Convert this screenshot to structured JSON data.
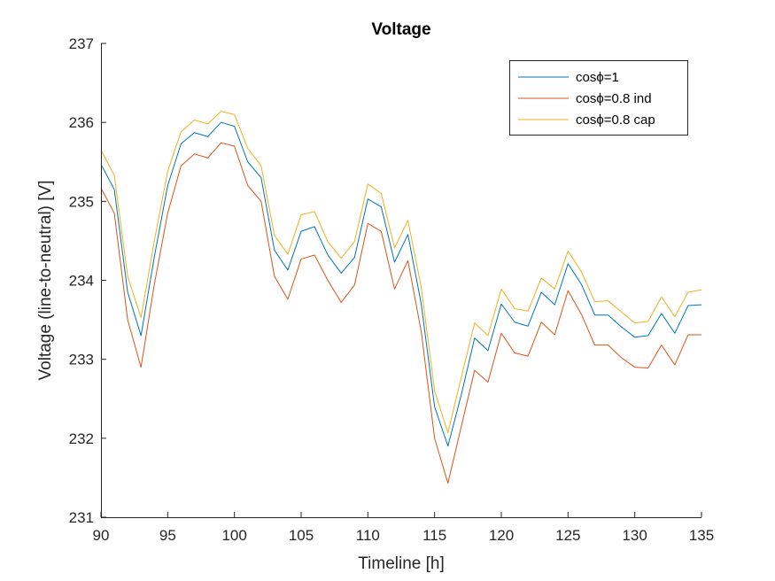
{
  "chart_data": {
    "type": "line",
    "title": "Voltage",
    "xlabel": "Timeline [h]",
    "ylabel": "Voltage (line-to-neutral) [V]",
    "xlim": [
      90,
      135
    ],
    "ylim": [
      231,
      237
    ],
    "xticks": [
      "90",
      "95",
      "100",
      "105",
      "110",
      "115",
      "120",
      "125",
      "130",
      "135"
    ],
    "yticks": [
      "231",
      "232",
      "233",
      "234",
      "235",
      "236",
      "237"
    ],
    "grid": false,
    "legend_position": "top-right",
    "x": [
      90,
      91,
      92,
      93,
      94,
      95,
      96,
      97,
      98,
      99,
      100,
      101,
      102,
      103,
      104,
      105,
      106,
      107,
      108,
      109,
      110,
      111,
      112,
      113,
      114,
      115,
      116,
      117,
      118,
      119,
      120,
      121,
      122,
      123,
      124,
      125,
      126,
      127,
      128,
      129,
      130,
      131,
      132,
      133,
      134,
      135
    ],
    "series": [
      {
        "name": "cosϕ=1",
        "color": "#0072BD",
        "values": [
          235.47,
          235.15,
          233.85,
          233.3,
          234.3,
          235.2,
          235.73,
          235.87,
          235.82,
          236.0,
          235.95,
          235.5,
          235.3,
          234.38,
          234.13,
          234.62,
          234.68,
          234.32,
          234.09,
          234.29,
          235.03,
          234.93,
          234.23,
          234.58,
          233.7,
          232.4,
          231.9,
          232.55,
          233.27,
          233.11,
          233.7,
          233.47,
          233.42,
          233.85,
          233.69,
          234.21,
          233.95,
          233.56,
          233.56,
          233.41,
          233.28,
          233.3,
          233.58,
          233.33,
          233.68,
          233.69
        ]
      },
      {
        "name": "cosϕ=0.8 ind",
        "color": "#D95319",
        "values": [
          235.17,
          234.85,
          233.5,
          232.9,
          233.95,
          234.85,
          235.45,
          235.6,
          235.55,
          235.74,
          235.7,
          235.2,
          235.0,
          234.05,
          233.76,
          234.27,
          234.32,
          234.0,
          233.72,
          233.94,
          234.72,
          234.62,
          233.89,
          234.25,
          233.35,
          232.0,
          231.43,
          232.15,
          232.86,
          232.71,
          233.33,
          233.08,
          233.04,
          233.47,
          233.31,
          233.87,
          233.57,
          233.18,
          233.18,
          233.02,
          232.9,
          232.89,
          233.18,
          232.93,
          233.31,
          233.31
        ]
      },
      {
        "name": "cosϕ=0.8 cap",
        "color": "#EDB120",
        "values": [
          235.65,
          235.33,
          234.05,
          233.53,
          234.5,
          235.38,
          235.88,
          236.03,
          235.98,
          236.14,
          236.1,
          235.67,
          235.45,
          234.57,
          234.33,
          234.83,
          234.87,
          234.49,
          234.28,
          234.49,
          235.22,
          235.1,
          234.41,
          234.76,
          233.91,
          232.6,
          232.07,
          232.77,
          233.46,
          233.3,
          233.89,
          233.64,
          233.61,
          234.03,
          233.89,
          234.37,
          234.11,
          233.73,
          233.74,
          233.6,
          233.46,
          233.48,
          233.79,
          233.54,
          233.85,
          233.88
        ]
      }
    ]
  }
}
